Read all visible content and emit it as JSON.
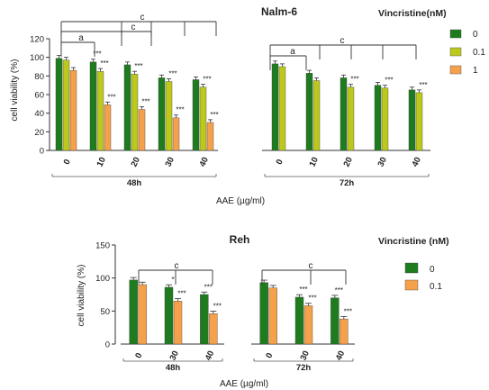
{
  "chart_data": [
    {
      "type": "bar",
      "title": "Nalm-6",
      "ylabel": "cell viability (%)",
      "xlabel": "AAE (µg/ml)",
      "ylim": [
        0,
        120
      ],
      "yticks": [
        0,
        20,
        40,
        60,
        80,
        100,
        120
      ],
      "grid": false,
      "legend_title": "Vincristine(nM)",
      "legend_position": "right",
      "series": [
        {
          "name": "0",
          "color": "#1e7b1e"
        },
        {
          "name": "0.1",
          "color": "#bcc81c"
        },
        {
          "name": "1",
          "color": "#f5a04a"
        }
      ],
      "groups": [
        {
          "label": "48h",
          "categories": [
            "0",
            "10",
            "20",
            "30",
            "40"
          ],
          "values": {
            "0": [
              99,
              95,
              92,
              78,
              76
            ],
            "0.1": [
              97,
              85,
              82,
              74,
              68
            ],
            "1": [
              86,
              49,
              44,
              35,
              30
            ]
          },
          "annotations": {
            "0": [
              "",
              "***",
              "",
              "",
              ""
            ],
            "0.1": [
              "",
              "***",
              "***",
              "***",
              "***"
            ],
            "1": [
              "",
              "***",
              "***",
              "***",
              "***"
            ]
          }
        },
        {
          "label": "72h",
          "categories": [
            "0",
            "10",
            "20",
            "30",
            "40"
          ],
          "values": {
            "0": [
              93,
              83,
              78,
              70,
              65
            ],
            "0.1": [
              90,
              75,
              68,
              67,
              62
            ]
          },
          "annotations": {
            "0": [
              "",
              "",
              "",
              "",
              ""
            ],
            "0.1": [
              "",
              "",
              "***",
              "***",
              "***"
            ]
          }
        }
      ],
      "brackets": [
        "a",
        "c",
        "c",
        "a",
        "c"
      ]
    },
    {
      "type": "bar",
      "title": "Reh",
      "ylabel": "cell viability (%)",
      "xlabel": "AAE (µg/ml)",
      "ylim": [
        0,
        150
      ],
      "yticks": [
        0,
        50,
        100,
        150
      ],
      "grid": false,
      "legend_title": "Vincristine (nM)",
      "legend_position": "right",
      "series": [
        {
          "name": "0",
          "color": "#1e7b1e"
        },
        {
          "name": "0.1",
          "color": "#f5a04a"
        }
      ],
      "groups": [
        {
          "label": "48h",
          "categories": [
            "0",
            "30",
            "40"
          ],
          "values": {
            "0": [
              97,
              86,
              75
            ],
            "0.1": [
              90,
              65,
              46
            ]
          },
          "annotations": {
            "0": [
              "",
              "*",
              "***"
            ],
            "0.1": [
              "",
              "***",
              "***"
            ]
          }
        },
        {
          "label": "72h",
          "categories": [
            "0",
            "30",
            "40"
          ],
          "values": {
            "0": [
              93,
              71,
              70
            ],
            "0.1": [
              85,
              58,
              38
            ]
          },
          "annotations": {
            "0": [
              "",
              "***",
              "***"
            ],
            "0.1": [
              "",
              "***",
              "***"
            ]
          }
        }
      ],
      "brackets": [
        "c",
        "c"
      ]
    }
  ]
}
